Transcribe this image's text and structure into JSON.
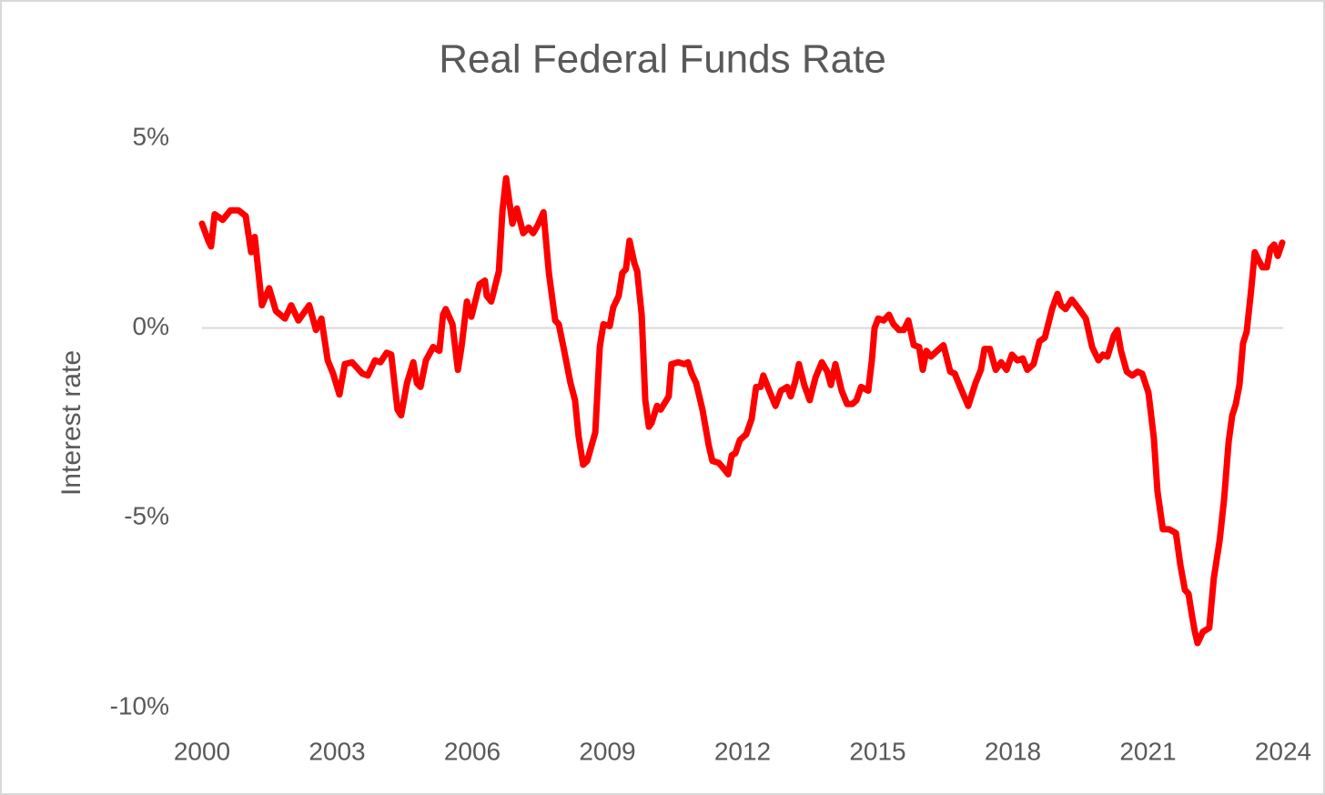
{
  "chart_data": {
    "type": "line",
    "title": "Real Federal Funds Rate",
    "ylabel": "Interest rate",
    "color": "#ff0000",
    "grid": false,
    "xlim": [
      2000,
      2024
    ],
    "xticks": [
      2000,
      2003,
      2006,
      2009,
      2012,
      2015,
      2018,
      2021,
      2024
    ],
    "ylim": [
      -10,
      5
    ],
    "yticks": [
      {
        "value": -10,
        "label": "-10%"
      },
      {
        "value": -5,
        "label": "-5%"
      },
      {
        "value": 0,
        "label": "0%"
      },
      {
        "value": 5,
        "label": "5%"
      }
    ],
    "x": [
      2000.0,
      2000.14,
      2000.2,
      2000.28,
      2000.46,
      2000.63,
      2000.81,
      2000.97,
      2001.09,
      2001.17,
      2001.33,
      2001.49,
      2001.64,
      2001.84,
      2001.98,
      2002.14,
      2002.38,
      2002.53,
      2002.65,
      2002.79,
      2002.91,
      2003.05,
      2003.17,
      2003.33,
      2003.56,
      2003.68,
      2003.84,
      2003.96,
      2004.1,
      2004.2,
      2004.34,
      2004.42,
      2004.55,
      2004.69,
      2004.77,
      2004.85,
      2004.97,
      2005.13,
      2005.27,
      2005.35,
      2005.41,
      2005.56,
      2005.68,
      2005.76,
      2005.88,
      2005.98,
      2006.16,
      2006.28,
      2006.32,
      2006.42,
      2006.59,
      2006.67,
      2006.75,
      2006.89,
      2006.99,
      2007.13,
      2007.25,
      2007.35,
      2007.45,
      2007.58,
      2007.7,
      2007.84,
      2007.92,
      2008.04,
      2008.18,
      2008.28,
      2008.36,
      2008.46,
      2008.55,
      2008.73,
      2008.83,
      2008.91,
      2009.05,
      2009.13,
      2009.25,
      2009.33,
      2009.41,
      2009.49,
      2009.6,
      2009.66,
      2009.76,
      2009.84,
      2009.92,
      2009.98,
      2010.1,
      2010.18,
      2010.36,
      2010.42,
      2010.57,
      2010.71,
      2010.79,
      2010.87,
      2010.97,
      2011.11,
      2011.25,
      2011.33,
      2011.47,
      2011.58,
      2011.68,
      2011.76,
      2011.84,
      2011.94,
      2012.08,
      2012.2,
      2012.3,
      2012.4,
      2012.46,
      2012.61,
      2012.73,
      2012.85,
      2012.99,
      2013.07,
      2013.17,
      2013.25,
      2013.37,
      2013.49,
      2013.62,
      2013.76,
      2013.88,
      2013.96,
      2014.06,
      2014.2,
      2014.32,
      2014.44,
      2014.53,
      2014.63,
      2014.79,
      2014.87,
      2014.93,
      2015.01,
      2015.13,
      2015.25,
      2015.35,
      2015.47,
      2015.58,
      2015.68,
      2015.8,
      2015.92,
      2016.0,
      2016.08,
      2016.18,
      2016.32,
      2016.46,
      2016.61,
      2016.71,
      2016.83,
      2017.01,
      2017.17,
      2017.29,
      2017.37,
      2017.49,
      2017.62,
      2017.74,
      2017.86,
      2017.98,
      2018.1,
      2018.22,
      2018.32,
      2018.46,
      2018.59,
      2018.71,
      2018.87,
      2018.99,
      2019.07,
      2019.17,
      2019.31,
      2019.47,
      2019.62,
      2019.76,
      2019.9,
      2020.0,
      2020.1,
      2020.24,
      2020.32,
      2020.4,
      2020.53,
      2020.65,
      2020.77,
      2020.87,
      2021.01,
      2021.13,
      2021.21,
      2021.33,
      2021.47,
      2021.62,
      2021.72,
      2021.82,
      2021.9,
      2021.98,
      2022.04,
      2022.1,
      2022.22,
      2022.36,
      2022.46,
      2022.59,
      2022.69,
      2022.79,
      2022.87,
      2022.95,
      2023.03,
      2023.11,
      2023.19,
      2023.29,
      2023.37,
      2023.45,
      2023.54,
      2023.64,
      2023.72,
      2023.8,
      2023.88,
      2023.98
    ],
    "values": [
      2.75,
      2.3,
      2.15,
      3.0,
      2.85,
      3.1,
      3.1,
      2.95,
      2.0,
      2.4,
      0.6,
      1.05,
      0.45,
      0.25,
      0.6,
      0.2,
      0.6,
      -0.05,
      0.25,
      -0.85,
      -1.2,
      -1.75,
      -0.95,
      -0.9,
      -1.2,
      -1.25,
      -0.85,
      -0.9,
      -0.65,
      -0.7,
      -2.15,
      -2.3,
      -1.45,
      -0.9,
      -1.45,
      -1.55,
      -0.85,
      -0.5,
      -0.6,
      0.35,
      0.5,
      0.1,
      -1.1,
      -0.5,
      0.7,
      0.3,
      1.15,
      1.25,
      0.85,
      0.7,
      1.5,
      3.1,
      3.95,
      2.75,
      3.15,
      2.5,
      2.65,
      2.5,
      2.7,
      3.05,
      1.45,
      0.2,
      0.1,
      -0.6,
      -1.45,
      -1.9,
      -2.85,
      -3.6,
      -3.5,
      -2.75,
      -0.5,
      0.1,
      0.05,
      0.55,
      0.85,
      1.45,
      1.55,
      2.3,
      1.7,
      1.5,
      0.35,
      -1.9,
      -2.6,
      -2.5,
      -2.05,
      -2.15,
      -1.8,
      -0.95,
      -0.9,
      -0.95,
      -0.9,
      -1.2,
      -1.45,
      -2.15,
      -3.1,
      -3.5,
      -3.55,
      -3.7,
      -3.85,
      -3.35,
      -3.3,
      -2.95,
      -2.8,
      -2.4,
      -1.55,
      -1.55,
      -1.25,
      -1.7,
      -2.05,
      -1.65,
      -1.55,
      -1.8,
      -1.4,
      -0.95,
      -1.5,
      -1.9,
      -1.3,
      -0.9,
      -1.15,
      -1.5,
      -0.95,
      -1.65,
      -2.0,
      -2.0,
      -1.9,
      -1.55,
      -1.65,
      -0.85,
      0.0,
      0.25,
      0.2,
      0.35,
      0.1,
      -0.05,
      -0.05,
      0.2,
      -0.45,
      -0.5,
      -1.1,
      -0.6,
      -0.75,
      -0.6,
      -0.45,
      -1.15,
      -1.2,
      -1.55,
      -2.05,
      -1.45,
      -1.1,
      -0.55,
      -0.55,
      -1.1,
      -0.9,
      -1.1,
      -0.7,
      -0.85,
      -0.8,
      -1.1,
      -0.95,
      -0.35,
      -0.25,
      0.5,
      0.9,
      0.6,
      0.5,
      0.75,
      0.5,
      0.25,
      -0.5,
      -0.85,
      -0.7,
      -0.75,
      -0.2,
      -0.05,
      -0.6,
      -1.15,
      -1.25,
      -1.15,
      -1.2,
      -1.7,
      -2.9,
      -4.3,
      -5.3,
      -5.3,
      -5.4,
      -6.25,
      -6.9,
      -7.0,
      -7.6,
      -8.0,
      -8.3,
      -8.0,
      -7.9,
      -6.6,
      -5.6,
      -4.5,
      -3.0,
      -2.3,
      -2.0,
      -1.5,
      -0.4,
      -0.1,
      1.0,
      2.0,
      1.8,
      1.6,
      1.6,
      2.1,
      2.2,
      1.9,
      2.25
    ]
  }
}
